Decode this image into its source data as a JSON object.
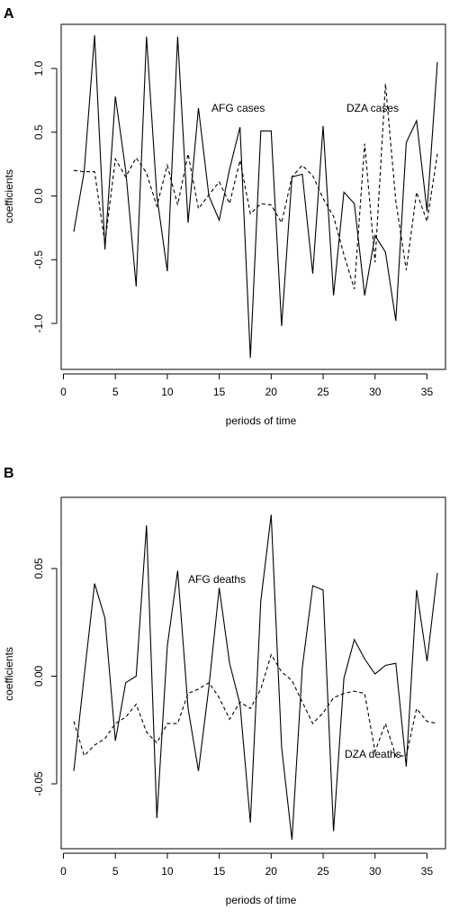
{
  "panels": [
    {
      "letter": "A",
      "xlabel": "periods of time",
      "ylabel": "coefficients",
      "annotations": [
        "AFG cases",
        "DZA cases"
      ]
    },
    {
      "letter": "B",
      "xlabel": "periods of time",
      "ylabel": "coefficients",
      "annotations": [
        "AFG deaths",
        "DZA deaths"
      ]
    }
  ],
  "chart_data": [
    {
      "type": "line",
      "title": "",
      "xlabel": "periods of time",
      "ylabel": "coefficients",
      "xlim": [
        1,
        36
      ],
      "ylim": [
        -1.3,
        1.3
      ],
      "xticks": [
        0,
        5,
        10,
        15,
        20,
        25,
        30,
        35
      ],
      "yticks": [
        -1.0,
        -0.5,
        0.0,
        0.5,
        1.0
      ],
      "ytick_labels": [
        "-1.0",
        "-0.5",
        "0.0",
        "0.5",
        "1.0"
      ],
      "x": [
        1,
        2,
        3,
        4,
        5,
        6,
        7,
        8,
        9,
        10,
        11,
        12,
        13,
        14,
        15,
        16,
        17,
        18,
        19,
        20,
        21,
        22,
        23,
        24,
        25,
        26,
        27,
        28,
        29,
        30,
        31,
        32,
        33,
        34,
        35,
        36
      ],
      "series": [
        {
          "style": "solid",
          "values": [
            -0.28,
            0.19,
            1.26,
            -0.42,
            0.78,
            0.2,
            -0.71,
            1.25,
            0.0,
            -0.59,
            1.25,
            -0.21,
            0.69,
            0.0,
            -0.19,
            0.21,
            0.54,
            -1.27,
            0.51,
            0.51,
            -1.02,
            0.15,
            0.17,
            -0.61,
            0.55,
            -0.78,
            0.03,
            -0.06,
            -0.78,
            -0.31,
            -0.44,
            -0.98,
            0.42,
            0.59,
            -0.12,
            1.05
          ]
        },
        {
          "style": "dashed",
          "values": [
            0.2,
            0.19,
            0.19,
            -0.37,
            0.29,
            0.15,
            0.3,
            0.18,
            -0.08,
            0.24,
            -0.07,
            0.33,
            -0.1,
            0.01,
            0.11,
            -0.06,
            0.28,
            -0.14,
            -0.06,
            -0.07,
            -0.21,
            0.15,
            0.24,
            0.16,
            -0.02,
            -0.16,
            -0.46,
            -0.73,
            0.41,
            -0.52,
            0.88,
            -0.04,
            -0.58,
            0.03,
            -0.2,
            0.33
          ]
        }
      ],
      "annotations": [
        {
          "text": "AFG cases",
          "x": 17.5,
          "y": 0.69
        },
        {
          "text": "DZA cases",
          "x": 30.5,
          "y": 0.69
        }
      ]
    },
    {
      "type": "line",
      "title": "",
      "xlabel": "periods of time",
      "ylabel": "coefficients",
      "xlim": [
        1,
        36
      ],
      "ylim": [
        -0.082,
        0.082
      ],
      "xticks": [
        0,
        5,
        10,
        15,
        20,
        25,
        30,
        35
      ],
      "yticks": [
        -0.05,
        0.0,
        0.05
      ],
      "ytick_labels": [
        "-0.05",
        "0.00",
        "0.05"
      ],
      "x": [
        1,
        2,
        3,
        4,
        5,
        6,
        7,
        8,
        9,
        10,
        11,
        12,
        13,
        14,
        15,
        16,
        17,
        18,
        19,
        20,
        21,
        22,
        23,
        24,
        25,
        26,
        27,
        28,
        29,
        30,
        31,
        32,
        33,
        34,
        35,
        36
      ],
      "series": [
        {
          "style": "solid",
          "values": [
            -0.044,
            0.0,
            0.043,
            0.027,
            -0.03,
            -0.003,
            0.0,
            0.07,
            -0.066,
            0.014,
            0.049,
            -0.015,
            -0.044,
            -0.005,
            0.041,
            0.006,
            -0.013,
            -0.068,
            0.035,
            0.075,
            -0.033,
            -0.076,
            0.004,
            0.042,
            0.04,
            -0.072,
            -0.001,
            0.017,
            0.008,
            0.001,
            0.005,
            0.006,
            -0.042,
            0.04,
            0.007,
            0.048
          ]
        },
        {
          "style": "dashed",
          "values": [
            -0.021,
            -0.037,
            -0.032,
            -0.029,
            -0.022,
            -0.019,
            -0.013,
            -0.026,
            -0.031,
            -0.022,
            -0.022,
            -0.008,
            -0.006,
            -0.003,
            -0.01,
            -0.02,
            -0.012,
            -0.015,
            -0.006,
            0.01,
            0.002,
            -0.002,
            -0.012,
            -0.022,
            -0.017,
            -0.01,
            -0.008,
            -0.007,
            -0.008,
            -0.035,
            -0.022,
            -0.037,
            -0.037,
            -0.015,
            -0.021,
            -0.022
          ]
        }
      ],
      "annotations": [
        {
          "text": "AFG deaths",
          "x": 17.2,
          "y": 0.045
        },
        {
          "text": "DZA deaths",
          "x": 30.3,
          "y": -0.036
        }
      ]
    }
  ]
}
